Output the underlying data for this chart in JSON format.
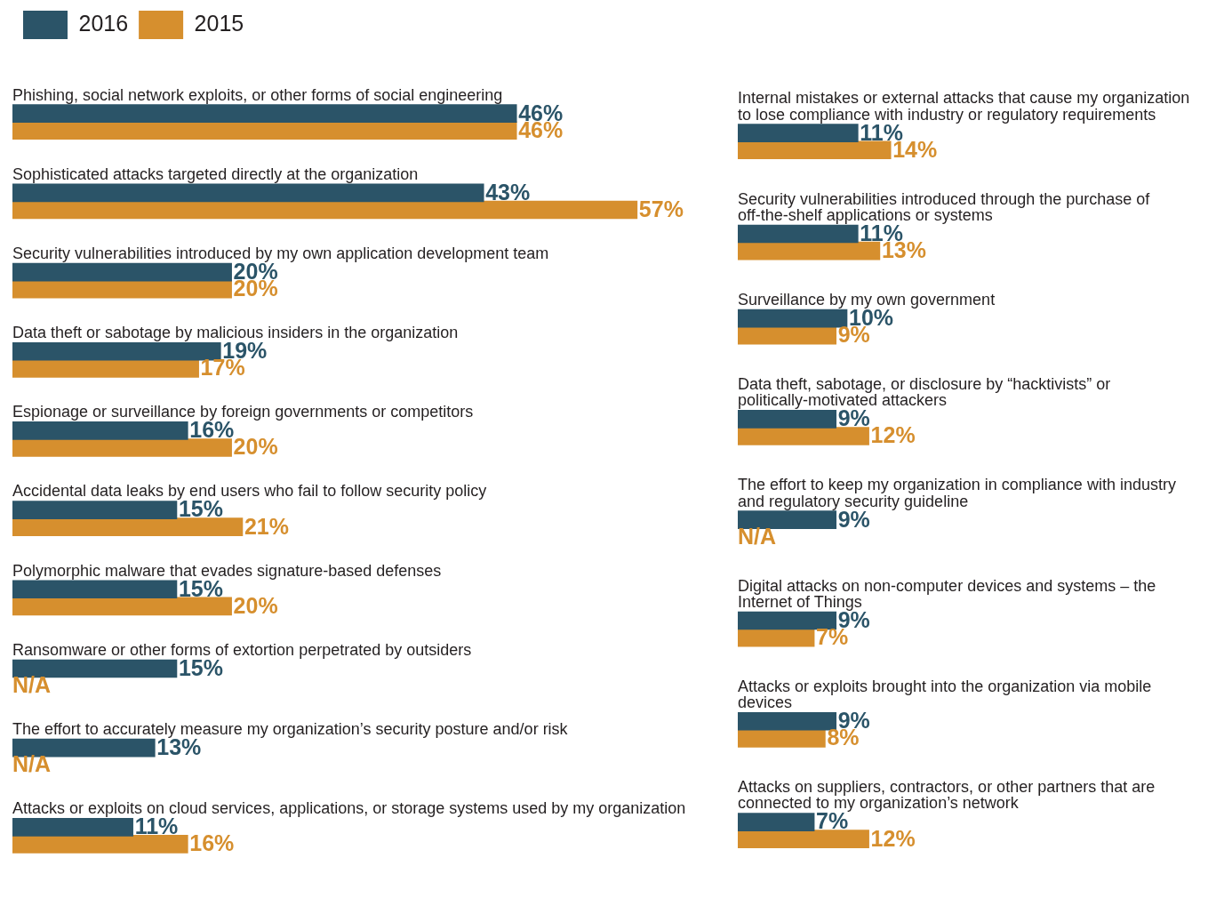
{
  "chart_data": [
    {
      "type": "bar",
      "orientation": "horizontal",
      "legend": "top left",
      "tick_labels": false,
      "categories": [
        "Phishing, social network exploits, or other forms of social engineering",
        "Sophisticated attacks targeted directly at the organization",
        "Security vulnerabilities introduced by my own application development team",
        "Data theft or sabotage by malicious insiders in the organization",
        "Espionage or surveillance by foreign governments or competitors",
        "Accidental data leaks by end users who fail to follow security policy",
        "Polymorphic malware that evades signature-based defenses",
        "Ransomware or other forms of extortion perpetrated by outsiders",
        "The effort to accurately measure my organization’s security posture and/or risk",
        "Attacks or exploits on cloud services, applications, or storage systems used by my organization"
      ],
      "series": [
        {
          "name": "2016",
          "color": "#2b5468",
          "values": [
            46,
            43,
            20,
            19,
            16,
            15,
            15,
            15,
            13,
            11
          ],
          "value_labels": [
            "46%",
            "43%",
            "20%",
            "19%",
            "16%",
            "15%",
            "15%",
            "15%",
            "13%",
            "11%"
          ]
        },
        {
          "name": "2015",
          "color": "#d68f2e",
          "values": [
            46,
            57,
            20,
            17,
            20,
            21,
            20,
            null,
            null,
            16
          ],
          "value_labels": [
            "46%",
            "57%",
            "20%",
            "17%",
            "20%",
            "21%",
            "20%",
            "N/A",
            "N/A",
            "16%"
          ]
        }
      ]
    },
    {
      "type": "bar",
      "orientation": "horizontal",
      "tick_labels": false,
      "categories": [
        "Internal mistakes or external attacks that cause my organization to lose compliance with industry or regulatory requirements",
        "Security vulnerabilities introduced through the purchase of off-the-shelf applications or systems",
        "Surveillance by my own government",
        "Data theft, sabotage, or disclosure by “hacktivists” or politically-motivated attackers",
        "The effort to keep my organization in compliance with industry and regulatory security guideline",
        "Digital attacks on non-computer devices and systems – the Internet of Things",
        "Attacks or exploits brought into the organization via mobile devices",
        "Attacks on suppliers, contractors, or other partners that are connected to my organization’s network"
      ],
      "series": [
        {
          "color": "#2b5468",
          "values": [
            11,
            11,
            10,
            9,
            9,
            9,
            9,
            7
          ],
          "value_labels": [
            "11%",
            "11%",
            "10%",
            "9%",
            "9%",
            "9%",
            "9%",
            "7%"
          ]
        },
        {
          "color": "#d68f2e",
          "values": [
            14,
            13,
            9,
            12,
            null,
            7,
            8,
            12
          ],
          "value_labels": [
            "14%",
            "13%",
            "9%",
            "12%",
            "N/A",
            "7%",
            "8%",
            "12%"
          ]
        }
      ]
    }
  ]
}
